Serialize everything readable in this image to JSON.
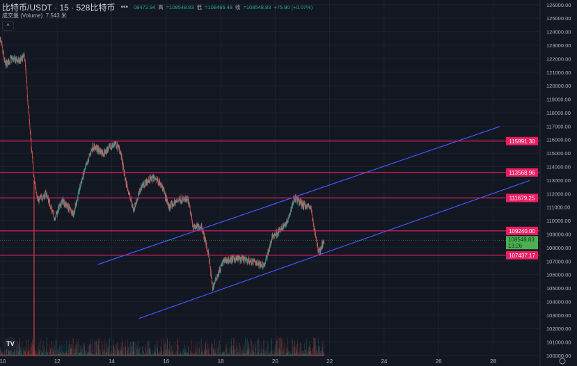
{
  "header": {
    "symbol": "比特币/USDT · 15 · 528比特币",
    "more": "•••",
    "open_value": "08472.94",
    "high_label": "高",
    "high_value": "=108548.83",
    "low_label": "低",
    "low_value": "=108466.48",
    "close_label": "收",
    "close_value": "=108548.83",
    "change": "+75.90 (+0.07%)",
    "volume_label": "成交量 (Volume)",
    "volume_value": "7.543 米",
    "collapse_icon": "chevron-up-icon"
  },
  "logo": "TV",
  "chart_data": {
    "type": "candlestick",
    "interval": "15",
    "x_ticks": [
      "10",
      "12",
      "14",
      "16",
      "18",
      "20",
      "22",
      "24",
      "26",
      "28"
    ],
    "x_range": [
      9.9,
      29.7
    ],
    "y_ticks": [
      100000,
      101000,
      102000,
      103000,
      104000,
      105000,
      106000,
      107000,
      108000,
      109000,
      110000,
      111000,
      112000,
      113000,
      114000,
      115000,
      116000,
      117000,
      118000,
      119000,
      120000,
      121000,
      122000,
      123000,
      124000,
      125000,
      126000
    ],
    "y_range": [
      99950,
      126350
    ],
    "price_path": [
      [
        9.9,
        123500
      ],
      [
        10.1,
        121500
      ],
      [
        10.3,
        122000
      ],
      [
        10.6,
        121800
      ],
      [
        10.8,
        122200
      ],
      [
        10.95,
        118000
      ],
      [
        11.15,
        113000
      ],
      [
        11.3,
        111500
      ],
      [
        11.6,
        112000
      ],
      [
        11.9,
        110200
      ],
      [
        12.2,
        111500
      ],
      [
        12.6,
        110500
      ],
      [
        12.9,
        113000
      ],
      [
        13.3,
        115500
      ],
      [
        13.7,
        115000
      ],
      [
        14.1,
        115700
      ],
      [
        14.3,
        115300
      ],
      [
        14.5,
        113000
      ],
      [
        14.8,
        110800
      ],
      [
        15.1,
        112600
      ],
      [
        15.5,
        113200
      ],
      [
        15.8,
        112800
      ],
      [
        16.1,
        111000
      ],
      [
        16.5,
        111600
      ],
      [
        16.8,
        111500
      ],
      [
        17.0,
        109500
      ],
      [
        17.3,
        109600
      ],
      [
        17.55,
        107500
      ],
      [
        17.7,
        105000
      ],
      [
        17.85,
        105800
      ],
      [
        18.1,
        107000
      ],
      [
        18.6,
        107200
      ],
      [
        19.1,
        107000
      ],
      [
        19.6,
        106700
      ],
      [
        19.9,
        108800
      ],
      [
        20.2,
        109300
      ],
      [
        20.45,
        110000
      ],
      [
        20.7,
        111700
      ],
      [
        21.0,
        111200
      ],
      [
        21.3,
        111000
      ],
      [
        21.45,
        109200
      ],
      [
        21.6,
        107600
      ],
      [
        21.8,
        108548.83
      ]
    ],
    "horizontal_levels": [
      115891.3,
      113568.96,
      111679.25,
      109240.0,
      107437.17
    ],
    "level_labels": [
      "115891.30",
      "113568.96",
      "111679.25",
      "109240.00",
      "107437.17"
    ],
    "trend_lines": [
      {
        "from": [
          13.49,
          106750
        ],
        "to": [
          28.24,
          116970
        ]
      },
      {
        "from": [
          15.0,
          102750
        ],
        "to": [
          29.34,
          112975
        ]
      }
    ],
    "last_price": "108548.83",
    "countdown": "13:26",
    "colors": {
      "up": "#26a69a",
      "down": "#ef5350",
      "level": "#e91e63",
      "trend": "#3d5afe",
      "last": "#4caf50",
      "background": "#131722"
    }
  }
}
